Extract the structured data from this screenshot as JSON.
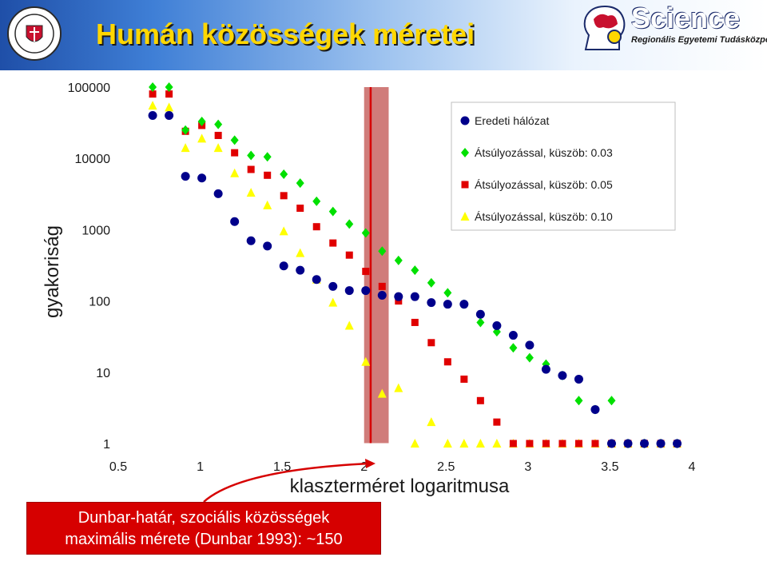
{
  "slide": {
    "title": "Humán közösségek méretei",
    "logo_text": "Science",
    "logo_subtitle": "Regionális Egyetemi Tudásközpont"
  },
  "annotation": {
    "line1": "Dunbar-határ, szociális közösségek",
    "line2": "maximális mérete (Dunbar 1993): ~150",
    "color": "#d60000"
  },
  "chart_data": {
    "type": "scatter",
    "xlabel": "klaszterméret logaritmusa",
    "ylabel": "gyakoriság",
    "xlim": [
      0.5,
      4
    ],
    "ylim": [
      1,
      100000
    ],
    "yscale": "log",
    "x_ticks": [
      "0.5",
      "1",
      "1.5",
      "2",
      "2.5",
      "3",
      "3.5",
      "4"
    ],
    "y_ticks": [
      "100000",
      "10000",
      "1000",
      "100",
      "10",
      "1"
    ],
    "legend_position": "top-right",
    "highlight_band": {
      "x_range": [
        2.0,
        2.15
      ],
      "marker_x": 2.04,
      "color": "#c0504d"
    },
    "series": [
      {
        "name": "Eredeti hálózat",
        "marker": "circle",
        "color": "#00008b",
        "points": [
          [
            0.71,
            40000
          ],
          [
            0.81,
            40000
          ],
          [
            0.91,
            5600
          ],
          [
            1.01,
            5300
          ],
          [
            1.11,
            3200
          ],
          [
            1.21,
            1300
          ],
          [
            1.31,
            700
          ],
          [
            1.41,
            590
          ],
          [
            1.51,
            310
          ],
          [
            1.61,
            270
          ],
          [
            1.71,
            200
          ],
          [
            1.81,
            160
          ],
          [
            1.91,
            140
          ],
          [
            2.01,
            140
          ],
          [
            2.11,
            120
          ],
          [
            2.21,
            115
          ],
          [
            2.31,
            115
          ],
          [
            2.41,
            95
          ],
          [
            2.51,
            90
          ],
          [
            2.61,
            90
          ],
          [
            2.71,
            65
          ],
          [
            2.81,
            45
          ],
          [
            2.91,
            33
          ],
          [
            3.01,
            24
          ],
          [
            3.11,
            11
          ],
          [
            3.21,
            9
          ],
          [
            3.31,
            8
          ],
          [
            3.41,
            3
          ],
          [
            3.51,
            1
          ],
          [
            3.61,
            1
          ],
          [
            3.71,
            1
          ],
          [
            3.81,
            1
          ],
          [
            3.91,
            1
          ]
        ]
      },
      {
        "name": "Átsúlyozással, küszöb: 0.03",
        "marker": "diamond",
        "color": "#00e000",
        "points": [
          [
            0.71,
            100000
          ],
          [
            0.81,
            100000
          ],
          [
            0.91,
            25000
          ],
          [
            1.01,
            33000
          ],
          [
            1.11,
            30000
          ],
          [
            1.21,
            18000
          ],
          [
            1.31,
            11000
          ],
          [
            1.41,
            10500
          ],
          [
            1.51,
            6000
          ],
          [
            1.61,
            4500
          ],
          [
            1.71,
            2500
          ],
          [
            1.81,
            1800
          ],
          [
            1.91,
            1200
          ],
          [
            2.01,
            900
          ],
          [
            2.11,
            500
          ],
          [
            2.21,
            370
          ],
          [
            2.31,
            270
          ],
          [
            2.41,
            180
          ],
          [
            2.51,
            130
          ],
          [
            2.61,
            90
          ],
          [
            2.71,
            50
          ],
          [
            2.81,
            37
          ],
          [
            2.91,
            22
          ],
          [
            3.01,
            16
          ],
          [
            3.11,
            13
          ],
          [
            3.21,
            9
          ],
          [
            3.31,
            4
          ],
          [
            3.41,
            3
          ],
          [
            3.51,
            4
          ],
          [
            3.61,
            1
          ],
          [
            3.71,
            1
          ],
          [
            3.81,
            1
          ],
          [
            3.91,
            1
          ]
        ]
      },
      {
        "name": "Átsúlyozással, küszöb: 0.05",
        "marker": "square",
        "color": "#e00000",
        "points": [
          [
            0.71,
            80000
          ],
          [
            0.81,
            80000
          ],
          [
            0.91,
            24000
          ],
          [
            1.01,
            29000
          ],
          [
            1.11,
            21000
          ],
          [
            1.21,
            12000
          ],
          [
            1.31,
            7000
          ],
          [
            1.41,
            5800
          ],
          [
            1.51,
            3000
          ],
          [
            1.61,
            2000
          ],
          [
            1.71,
            1100
          ],
          [
            1.81,
            650
          ],
          [
            1.91,
            440
          ],
          [
            2.01,
            260
          ],
          [
            2.11,
            160
          ],
          [
            2.21,
            100
          ],
          [
            2.31,
            50
          ],
          [
            2.41,
            26
          ],
          [
            2.51,
            14
          ],
          [
            2.61,
            8
          ],
          [
            2.71,
            4
          ],
          [
            2.81,
            2
          ],
          [
            2.91,
            1
          ],
          [
            3.01,
            1
          ],
          [
            3.11,
            1
          ],
          [
            3.21,
            1
          ],
          [
            3.31,
            1
          ],
          [
            3.41,
            1
          ],
          [
            3.51,
            1
          ],
          [
            3.61,
            1
          ],
          [
            3.71,
            1
          ],
          [
            3.81,
            1
          ],
          [
            3.91,
            1
          ]
        ]
      },
      {
        "name": "Átsúlyozással, küszöb: 0.10",
        "marker": "triangle",
        "color": "#ffff00",
        "points": [
          [
            0.71,
            55000
          ],
          [
            0.81,
            52000
          ],
          [
            0.91,
            14000
          ],
          [
            1.01,
            19000
          ],
          [
            1.11,
            14000
          ],
          [
            1.21,
            6200
          ],
          [
            1.31,
            3300
          ],
          [
            1.41,
            2200
          ],
          [
            1.51,
            950
          ],
          [
            1.61,
            470
          ],
          [
            1.71,
            200
          ],
          [
            1.81,
            95
          ],
          [
            1.91,
            45
          ],
          [
            2.01,
            14
          ],
          [
            2.11,
            5
          ],
          [
            2.21,
            6
          ],
          [
            2.31,
            1
          ],
          [
            2.41,
            2
          ],
          [
            2.51,
            1
          ],
          [
            2.61,
            1
          ],
          [
            2.71,
            1
          ],
          [
            2.81,
            1
          ],
          [
            2.91,
            1
          ],
          [
            3.01,
            1
          ],
          [
            3.11,
            1
          ],
          [
            3.21,
            1
          ],
          [
            3.31,
            1
          ],
          [
            3.41,
            1
          ],
          [
            3.51,
            1
          ],
          [
            3.61,
            1
          ],
          [
            3.71,
            1
          ],
          [
            3.81,
            1
          ],
          [
            3.91,
            1
          ]
        ]
      }
    ]
  }
}
